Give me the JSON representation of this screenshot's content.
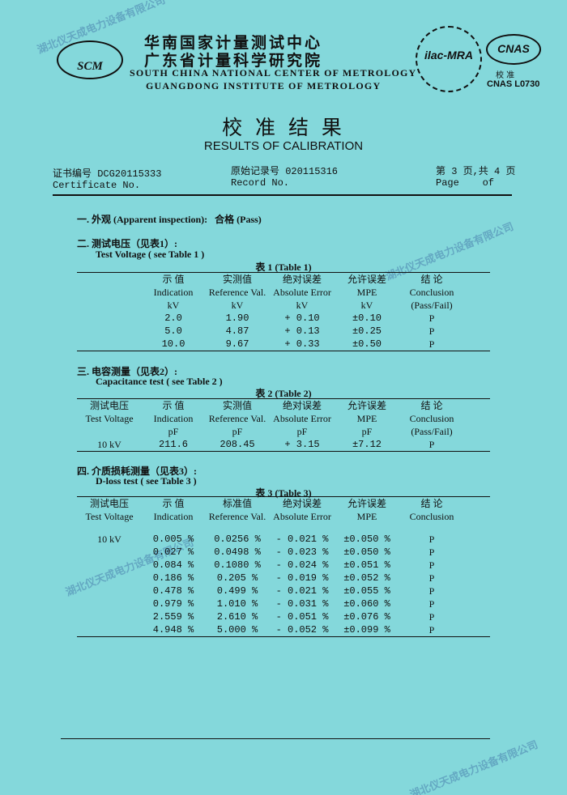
{
  "header": {
    "logo_text": "SCM",
    "org_cn_1": "华南国家计量测试中心",
    "org_cn_2": "广东省计量科学研究院",
    "org_en_1": "SOUTH CHINA NATIONAL CENTER OF METROLOGY",
    "org_en_2": "GUANGDONG INSTITUTE OF METROLOGY",
    "ilac_text": "ilac-MRA",
    "cnas_text": "CNAS",
    "cnas_cn": "校 准",
    "cnas_code": "CNAS L0730"
  },
  "title": {
    "cn": "校 准 结 果",
    "en": "RESULTS OF CALIBRATION"
  },
  "meta": {
    "cert_cn": "证书编号 DCG20115333",
    "cert_en": "Certificate No.",
    "record_cn": "原始记录号 020115316",
    "record_en": "Record No.",
    "page_cn": "第 3 页,共 4 页",
    "page_en": "Page    of"
  },
  "section1": {
    "label": "一. 外观 (Apparent inspection):",
    "value": "合格 (Pass)"
  },
  "section2": {
    "label_cn": "二. 测试电压（见表1）:",
    "label_en": "Test Voltage ( see Table 1 )"
  },
  "table1": {
    "caption": "表 1 (Table 1)",
    "headers": [
      [
        "示 值",
        "Indication",
        "kV"
      ],
      [
        "实测值",
        "Reference Val.",
        "kV"
      ],
      [
        "绝对误差",
        "Absolute Error",
        "kV"
      ],
      [
        "允许误差",
        "MPE",
        "kV"
      ],
      [
        "结 论",
        "Conclusion",
        "(Pass/Fail)"
      ]
    ],
    "rows": [
      [
        "2.0",
        "1.90",
        "+ 0.10",
        "±0.10",
        "P"
      ],
      [
        "5.0",
        "4.87",
        "+ 0.13",
        "±0.25",
        "P"
      ],
      [
        "10.0",
        "9.67",
        "+ 0.33",
        "±0.50",
        "P"
      ]
    ]
  },
  "section3": {
    "label_cn": "三. 电容测量（见表2）:",
    "label_en": "Capacitance test ( see Table 2 )"
  },
  "table2": {
    "caption": "表 2 (Table 2)",
    "headers": [
      [
        "测试电压",
        "Test Voltage",
        ""
      ],
      [
        "示 值",
        "Indication",
        "pF"
      ],
      [
        "实测值",
        "Reference Val.",
        "pF"
      ],
      [
        "绝对误差",
        "Absolute Error",
        "pF"
      ],
      [
        "允许误差",
        "MPE",
        "pF"
      ],
      [
        "结 论",
        "Conclusion",
        "(Pass/Fail)"
      ]
    ],
    "rows": [
      [
        "10 kV",
        "211.6",
        "208.45",
        "+ 3.15",
        "±7.12",
        "P"
      ]
    ]
  },
  "section4": {
    "label_cn": "四. 介质损耗测量（见表3）:",
    "label_en": "D-loss test ( see Table 3 )"
  },
  "table3": {
    "caption": "表 3 (Table 3)",
    "headers": [
      [
        "测试电压",
        "Test Voltage"
      ],
      [
        "示 值",
        "Indication"
      ],
      [
        "标准值",
        "Reference Val."
      ],
      [
        "绝对误差",
        "Absolute Error"
      ],
      [
        "允许误差",
        "MPE"
      ],
      [
        "结 论",
        "Conclusion"
      ]
    ],
    "rows": [
      [
        "10 kV",
        "0.005 %",
        "0.0256 %",
        "- 0.021 %",
        "±0.050 %",
        "P"
      ],
      [
        "",
        "0.027 %",
        "0.0498 %",
        "- 0.023 %",
        "±0.050 %",
        "P"
      ],
      [
        "",
        "0.084 %",
        "0.1080 %",
        "- 0.024 %",
        "±0.051 %",
        "P"
      ],
      [
        "",
        "0.186 %",
        "0.205 %",
        "- 0.019 %",
        "±0.052 %",
        "P"
      ],
      [
        "",
        "0.478 %",
        "0.499 %",
        "- 0.021 %",
        "±0.055 %",
        "P"
      ],
      [
        "",
        "0.979 %",
        "1.010 %",
        "- 0.031 %",
        "±0.060 %",
        "P"
      ],
      [
        "",
        "2.559 %",
        "2.610 %",
        "- 0.051 %",
        "±0.076 %",
        "P"
      ],
      [
        "",
        "4.948 %",
        "5.000 %",
        "- 0.052 %",
        "±0.099 %",
        "P"
      ]
    ]
  },
  "watermark": "湖北仪天成电力设备有限公司",
  "colors": {
    "paper": "#84d8db",
    "ink": "#111111",
    "watermark": "#2850a0"
  }
}
